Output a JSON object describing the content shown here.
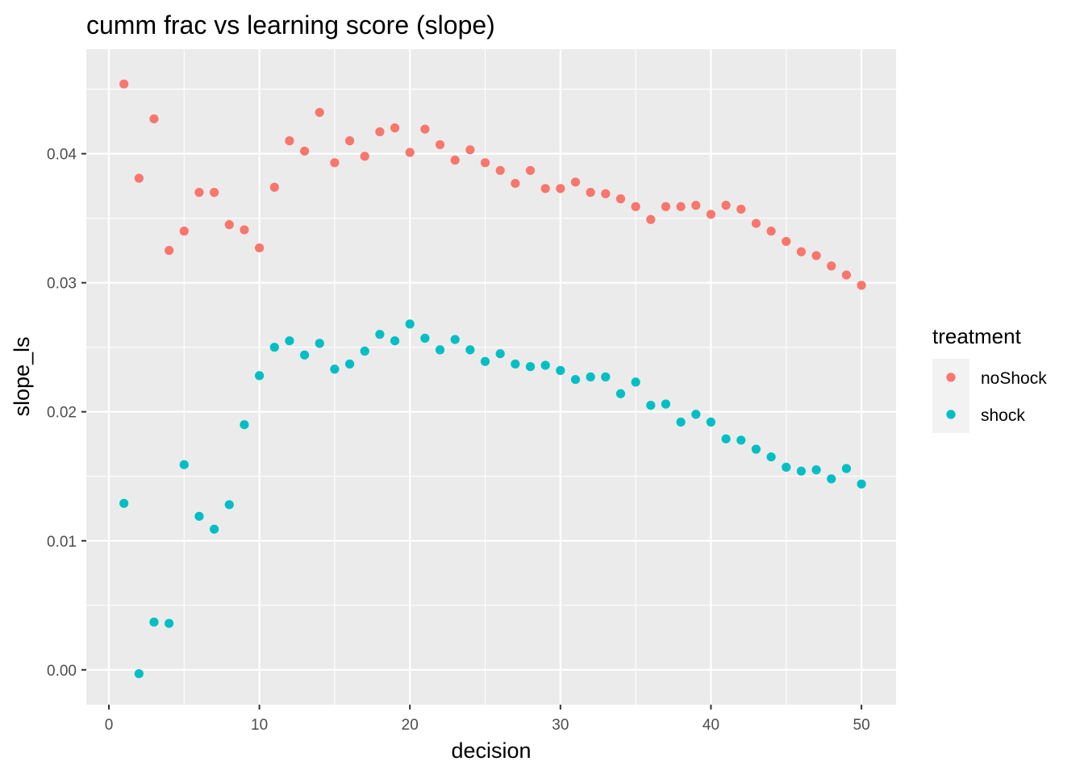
{
  "chart_data": {
    "type": "scatter",
    "title": "cumm frac vs learning score (slope)",
    "xlabel": "decision",
    "ylabel": "slope_ls",
    "xlim": [
      -1.5,
      52.3
    ],
    "ylim": [
      -0.0027,
      0.0481
    ],
    "x_ticks": [
      0,
      10,
      20,
      30,
      40,
      50
    ],
    "x_tick_labels": [
      "0",
      "10",
      "20",
      "30",
      "40",
      "50"
    ],
    "y_ticks": [
      0.0,
      0.01,
      0.02,
      0.03,
      0.04
    ],
    "y_tick_labels": [
      "0.00",
      "0.01",
      "0.02",
      "0.03",
      "0.04"
    ],
    "grid": true,
    "legend": {
      "title": "treatment",
      "position": "right",
      "entries": [
        " noShock",
        "shock"
      ]
    },
    "series": [
      {
        "name": " noShock",
        "color": "#F8766D",
        "x": [
          1,
          2,
          3,
          4,
          5,
          6,
          7,
          8,
          9,
          10,
          11,
          12,
          13,
          14,
          15,
          16,
          17,
          18,
          19,
          20,
          21,
          22,
          23,
          24,
          25,
          26,
          27,
          28,
          29,
          30,
          31,
          32,
          33,
          34,
          35,
          36,
          37,
          38,
          39,
          40,
          41,
          42,
          43,
          44,
          45,
          46,
          47,
          48,
          49,
          50
        ],
        "values": [
          0.0454,
          0.0381,
          0.0427,
          0.0325,
          0.034,
          0.037,
          0.037,
          0.0345,
          0.0341,
          0.0327,
          0.0374,
          0.041,
          0.0402,
          0.0432,
          0.0393,
          0.041,
          0.0398,
          0.0417,
          0.042,
          0.0401,
          0.0419,
          0.0407,
          0.0395,
          0.0403,
          0.0393,
          0.0387,
          0.0377,
          0.0387,
          0.0373,
          0.0373,
          0.0378,
          0.037,
          0.0369,
          0.0365,
          0.0359,
          0.0349,
          0.0359,
          0.0359,
          0.036,
          0.0353,
          0.036,
          0.0357,
          0.0346,
          0.034,
          0.0332,
          0.0324,
          0.0321,
          0.0313,
          0.0306,
          0.0298
        ]
      },
      {
        "name": "shock",
        "color": "#00BFC4",
        "x": [
          1,
          2,
          3,
          4,
          5,
          6,
          7,
          8,
          9,
          10,
          11,
          12,
          13,
          14,
          15,
          16,
          17,
          18,
          19,
          20,
          21,
          22,
          23,
          24,
          25,
          26,
          27,
          28,
          29,
          30,
          31,
          32,
          33,
          34,
          35,
          36,
          37,
          38,
          39,
          40,
          41,
          42,
          43,
          44,
          45,
          46,
          47,
          48,
          49,
          50
        ],
        "values": [
          0.0129,
          -0.0003,
          0.0037,
          0.0036,
          0.0159,
          0.0119,
          0.0109,
          0.0128,
          0.019,
          0.0228,
          0.025,
          0.0255,
          0.0244,
          0.0253,
          0.0233,
          0.0237,
          0.0247,
          0.026,
          0.0255,
          0.0268,
          0.0257,
          0.0248,
          0.0256,
          0.0248,
          0.0239,
          0.0245,
          0.0237,
          0.0235,
          0.0236,
          0.0232,
          0.0225,
          0.0227,
          0.0227,
          0.0214,
          0.0223,
          0.0205,
          0.0206,
          0.0192,
          0.0198,
          0.0192,
          0.0179,
          0.0178,
          0.0171,
          0.0165,
          0.0157,
          0.0154,
          0.0155,
          0.0148,
          0.0156,
          0.0144
        ]
      }
    ]
  }
}
